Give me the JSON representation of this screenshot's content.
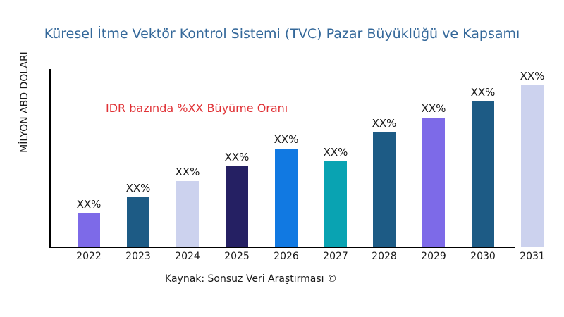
{
  "chart_data": {
    "type": "bar",
    "title": "Küresel İtme Vektör Kontrol Sistemi (TVC) Pazar Büyüklüğü ve Kapsamı",
    "ylabel": "MİLYON ABD DOLARI",
    "xlabel": "",
    "categories": [
      "2022",
      "2023",
      "2024",
      "2025",
      "2026",
      "2027",
      "2028",
      "2029",
      "2030",
      "2031"
    ],
    "bar_labels": [
      "XX%",
      "XX%",
      "XX%",
      "XX%",
      "XX%",
      "XX%",
      "XX%",
      "XX%",
      "XX%",
      "XX%"
    ],
    "values_relative_pct_of_max": [
      21,
      31,
      41,
      50,
      61,
      53,
      71,
      80,
      90,
      100
    ],
    "bar_colors": [
      "#7D6AE8",
      "#1D5B85",
      "#CCD2EE",
      "#252063",
      "#1179E2",
      "#09A3B2",
      "#1D5B85",
      "#7D6AE8",
      "#1D5B85",
      "#CCD2EE"
    ],
    "annotation": {
      "text": "IDR bazında %XX Büyüme Oranı",
      "color": "#E03236"
    },
    "source_caption": "Kaynak: Sonsuz Veri Araştırması ©",
    "colors": {
      "title": "#34689A",
      "axis": "#000000",
      "text": "#1A1A1A"
    },
    "grid": false,
    "legend_position": "none",
    "y_tick_labels_shown": false
  }
}
